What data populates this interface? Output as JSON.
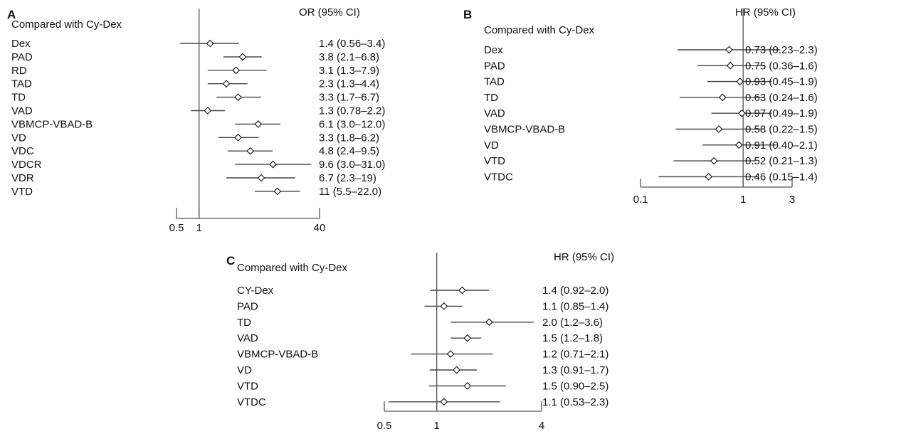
{
  "chart_data": [
    {
      "panel": "A",
      "type": "forest",
      "row_header": "Compared with Cy-Dex",
      "estimate_header": "OR (95% CI)",
      "scale": "log",
      "xlim": [
        0.5,
        40
      ],
      "ticks": [
        {
          "value": 0.5,
          "label": "0.5"
        },
        {
          "value": 1,
          "label": "1"
        },
        {
          "value": 40,
          "label": "40"
        }
      ],
      "reference": 1,
      "rows": [
        {
          "label": "Dex",
          "est": 1.4,
          "lo": 0.56,
          "hi": 3.4,
          "text": "1.4 (0.56–3.4)"
        },
        {
          "label": "PAD",
          "est": 3.8,
          "lo": 2.1,
          "hi": 6.8,
          "text": "3.8 (2.1–6.8)"
        },
        {
          "label": "RD",
          "est": 3.1,
          "lo": 1.3,
          "hi": 7.9,
          "text": "3.1 (1.3–7.9)"
        },
        {
          "label": "TAD",
          "est": 2.3,
          "lo": 1.3,
          "hi": 4.4,
          "text": "2.3 (1.3–4.4)"
        },
        {
          "label": "TD",
          "est": 3.3,
          "lo": 1.7,
          "hi": 6.7,
          "text": "3.3 (1.7–6.7)"
        },
        {
          "label": "VAD",
          "est": 1.3,
          "lo": 0.78,
          "hi": 2.2,
          "text": "1.3 (0.78–2.2)"
        },
        {
          "label": "VBMCP-VBAD-B",
          "est": 6.1,
          "lo": 3.0,
          "hi": 12.0,
          "text": "6.1 (3.0–12.0)"
        },
        {
          "label": "VD",
          "est": 3.3,
          "lo": 1.8,
          "hi": 6.2,
          "text": "3.3 (1.8–6.2)"
        },
        {
          "label": "VDC",
          "est": 4.8,
          "lo": 2.4,
          "hi": 9.5,
          "text": "4.8 (2.4–9.5)"
        },
        {
          "label": "VDCR",
          "est": 9.6,
          "lo": 3.0,
          "hi": 31.0,
          "text": "9.6 (3.0–31.0)"
        },
        {
          "label": "VDR",
          "est": 6.7,
          "lo": 2.3,
          "hi": 19,
          "text": "6.7 (2.3–19)"
        },
        {
          "label": "VTD",
          "est": 11,
          "lo": 5.5,
          "hi": 22.0,
          "text": "11 (5.5–22.0)"
        }
      ]
    },
    {
      "panel": "B",
      "type": "forest",
      "row_header": "Compared with Cy-Dex",
      "estimate_header": "HR (95% CI)",
      "scale": "log",
      "xlim": [
        0.1,
        3
      ],
      "ticks": [
        {
          "value": 0.1,
          "label": "0.1"
        },
        {
          "value": 1,
          "label": "1"
        },
        {
          "value": 3,
          "label": "3"
        }
      ],
      "reference": 1,
      "rows": [
        {
          "label": "Dex",
          "est": 0.73,
          "lo": 0.23,
          "hi": 2.3,
          "text": "0.73 (0.23–2.3)"
        },
        {
          "label": "PAD",
          "est": 0.75,
          "lo": 0.36,
          "hi": 1.6,
          "text": "0.75 (0.36–1.6)"
        },
        {
          "label": "TAD",
          "est": 0.93,
          "lo": 0.45,
          "hi": 1.9,
          "text": "0.93 (0.45–1.9)"
        },
        {
          "label": "TD",
          "est": 0.63,
          "lo": 0.24,
          "hi": 1.6,
          "text": "0.63 (0.24–1.6)"
        },
        {
          "label": "VAD",
          "est": 0.97,
          "lo": 0.49,
          "hi": 1.9,
          "text": "0.97 (0.49–1.9)"
        },
        {
          "label": "VBMCP-VBAD-B",
          "est": 0.58,
          "lo": 0.22,
          "hi": 1.5,
          "text": "0.58 (0.22–1.5)"
        },
        {
          "label": "VD",
          "est": 0.91,
          "lo": 0.4,
          "hi": 2.1,
          "text": "0.91 (0.40–2.1)"
        },
        {
          "label": "VTD",
          "est": 0.52,
          "lo": 0.21,
          "hi": 1.3,
          "text": "0.52 (0.21–1.3)"
        },
        {
          "label": "VTDC",
          "est": 0.46,
          "lo": 0.15,
          "hi": 1.4,
          "text": "0.46 (0.15–1.4)"
        }
      ]
    },
    {
      "panel": "C",
      "type": "forest",
      "row_header": "Compared with Cy-Dex",
      "estimate_header": "HR (95% CI)",
      "scale": "log",
      "xlim": [
        0.5,
        4
      ],
      "ticks": [
        {
          "value": 0.5,
          "label": "0.5"
        },
        {
          "value": 1,
          "label": "1"
        },
        {
          "value": 4,
          "label": "4"
        }
      ],
      "reference": 1,
      "rows": [
        {
          "label": "CY-Dex",
          "est": 1.4,
          "lo": 0.92,
          "hi": 2.0,
          "text": "1.4 (0.92–2.0)"
        },
        {
          "label": "PAD",
          "est": 1.1,
          "lo": 0.85,
          "hi": 1.4,
          "text": "1.1 (0.85–1.4)"
        },
        {
          "label": "TD",
          "est": 2.0,
          "lo": 1.2,
          "hi": 3.6,
          "text": "2.0 (1.2–3.6)"
        },
        {
          "label": "VAD",
          "est": 1.5,
          "lo": 1.2,
          "hi": 1.8,
          "text": "1.5 (1.2–1.8)"
        },
        {
          "label": "VBMCP-VBAD-B",
          "est": 1.2,
          "lo": 0.71,
          "hi": 2.1,
          "text": "1.2 (0.71–2.1)"
        },
        {
          "label": "VD",
          "est": 1.3,
          "lo": 0.91,
          "hi": 1.7,
          "text": "1.3 (0.91–1.7)"
        },
        {
          "label": "VTD",
          "est": 1.5,
          "lo": 0.9,
          "hi": 2.5,
          "text": "1.5 (0.90–2.5)"
        },
        {
          "label": "VTDC",
          "est": 1.1,
          "lo": 0.53,
          "hi": 2.3,
          "text": "1.1 (0.53–2.3)"
        }
      ]
    }
  ],
  "style": {
    "ink": "#111111",
    "ci_line": "#444444",
    "axis_line": "#555555",
    "marker_fill": "#ffffff"
  }
}
